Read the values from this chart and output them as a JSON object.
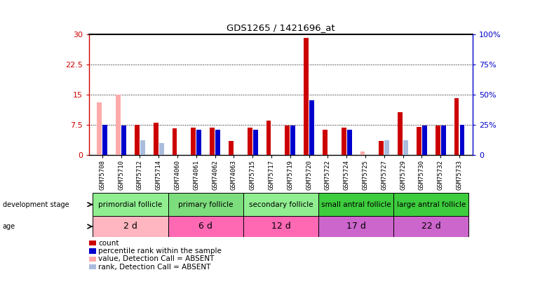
{
  "title": "GDS1265 / 1421696_at",
  "samples": [
    "GSM75708",
    "GSM75710",
    "GSM75712",
    "GSM75714",
    "GSM74060",
    "GSM74061",
    "GSM74062",
    "GSM74063",
    "GSM75715",
    "GSM75717",
    "GSM75719",
    "GSM75720",
    "GSM75722",
    "GSM75724",
    "GSM75725",
    "GSM75727",
    "GSM75729",
    "GSM75730",
    "GSM75732",
    "GSM75733"
  ],
  "count_values": [
    13.0,
    15.0,
    7.5,
    8.0,
    6.5,
    6.8,
    6.8,
    3.5,
    6.8,
    8.5,
    7.2,
    29.0,
    6.2,
    6.8,
    0.8,
    3.5,
    10.5,
    7.0,
    7.2,
    14.0
  ],
  "rank_values": [
    25.0,
    24.0,
    12.0,
    10.0,
    0.0,
    21.0,
    21.0,
    0.0,
    21.0,
    0.0,
    24.0,
    45.0,
    0.0,
    21.0,
    0.0,
    12.0,
    12.0,
    24.0,
    24.0,
    25.0
  ],
  "absent_count": [
    true,
    true,
    false,
    false,
    false,
    false,
    false,
    false,
    false,
    false,
    false,
    false,
    false,
    false,
    true,
    false,
    false,
    false,
    false,
    false
  ],
  "absent_rank": [
    false,
    false,
    true,
    true,
    false,
    false,
    false,
    false,
    false,
    false,
    false,
    false,
    false,
    false,
    true,
    true,
    true,
    false,
    false,
    false
  ],
  "groups": [
    {
      "label": "primordial follicle",
      "age": "2 d",
      "start": 0,
      "end": 4,
      "color_dev": "#90ee90",
      "color_age": "#ffb6c1"
    },
    {
      "label": "primary follicle",
      "age": "6 d",
      "start": 4,
      "end": 8,
      "color_dev": "#7cdd7c",
      "color_age": "#ff69b4"
    },
    {
      "label": "secondary follicle",
      "age": "12 d",
      "start": 8,
      "end": 12,
      "color_dev": "#90ee90",
      "color_age": "#ff69b4"
    },
    {
      "label": "small antral follicle",
      "age": "17 d",
      "start": 12,
      "end": 16,
      "color_dev": "#3dcc3d",
      "color_age": "#cc66cc"
    },
    {
      "label": "large antral follicle",
      "age": "22 d",
      "start": 16,
      "end": 20,
      "color_dev": "#3dcc3d",
      "color_age": "#cc66cc"
    }
  ],
  "ylim_left": [
    0,
    30
  ],
  "ylim_right": [
    0,
    100
  ],
  "yticks_left": [
    0,
    7.5,
    15,
    22.5,
    30
  ],
  "yticks_right": [
    0,
    25,
    50,
    75,
    100
  ],
  "ytick_labels_left": [
    "0",
    "7.5",
    "15",
    "22.5",
    "30"
  ],
  "ytick_labels_right": [
    "0",
    "25%",
    "50%",
    "75%",
    "100%"
  ],
  "color_count": "#cc0000",
  "color_rank": "#0000cc",
  "color_absent_count": "#ffaaaa",
  "color_absent_rank": "#aabbdd",
  "bar_width": 0.25,
  "bg_color": "#ffffff",
  "label_bg": "#c8c8c8"
}
